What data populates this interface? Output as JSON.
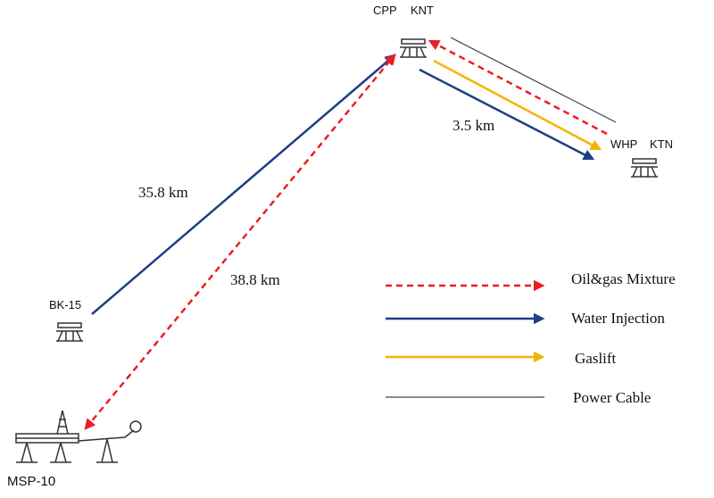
{
  "nodes": [
    {
      "label": "CPP",
      "sublabel": "KNT"
    },
    {
      "label": "WHP",
      "sublabel": "KTN"
    },
    {
      "label": "BK-15"
    },
    {
      "label": "MSP-10"
    }
  ],
  "links": [
    {
      "label": "3.5 km"
    },
    {
      "label": "35.8 km"
    },
    {
      "label": "38.8 km"
    }
  ],
  "legend": [
    {
      "label": "Oil&gas Mixture"
    },
    {
      "label": "Water Injection"
    },
    {
      "label": "Gaslift"
    },
    {
      "label": "Power Cable"
    }
  ]
}
